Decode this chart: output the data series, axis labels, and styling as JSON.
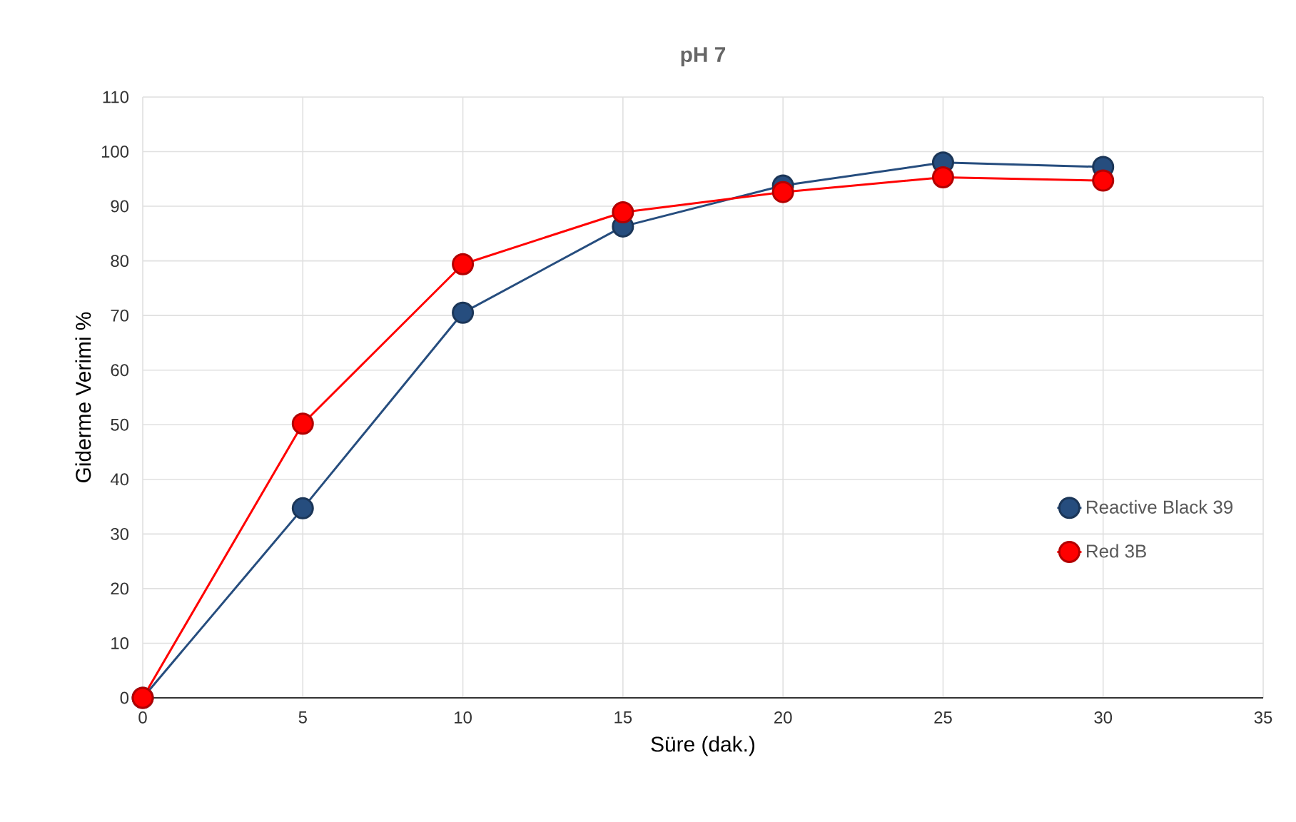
{
  "chart_data": {
    "type": "line",
    "title": "pH 7",
    "xlabel": "Süre (dak.)",
    "ylabel": "Giderme Verimi %",
    "x": [
      0,
      5,
      10,
      15,
      20,
      25,
      30
    ],
    "series": [
      {
        "name": "Reactive Black 39",
        "color": "#264d7e",
        "values": [
          0,
          34.7,
          70.5,
          86.3,
          93.8,
          98,
          97.2
        ]
      },
      {
        "name": "Red 3B",
        "color": "#ff0000",
        "values": [
          0,
          50.2,
          79.4,
          88.9,
          92.6,
          95.3,
          94.7
        ]
      }
    ],
    "xlim": [
      0,
      35
    ],
    "xticks": [
      0,
      5,
      10,
      15,
      20,
      25,
      30,
      35
    ],
    "ylim": [
      0,
      110
    ],
    "yticks": [
      0,
      10,
      20,
      30,
      40,
      50,
      60,
      70,
      80,
      90,
      100,
      110
    ],
    "grid": true,
    "legend": "bottom right",
    "marker": "circle",
    "line_style": "solid"
  }
}
